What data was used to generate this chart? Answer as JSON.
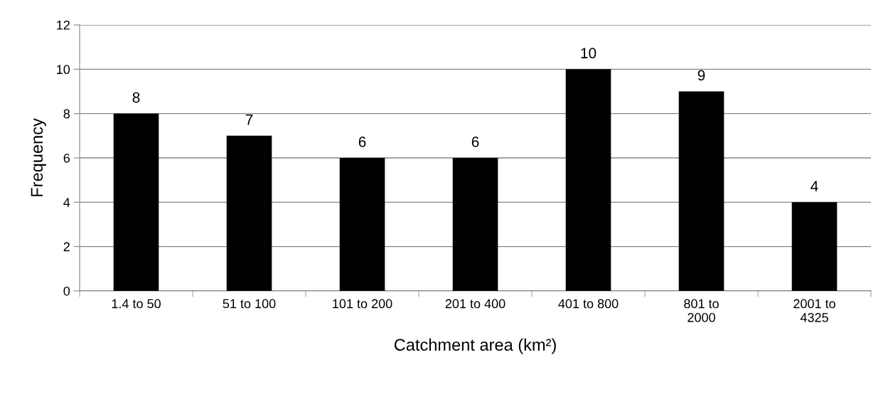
{
  "chart_data": {
    "type": "bar",
    "xlabel": "Catchment area (km²)",
    "ylabel": "Frequency",
    "categories": [
      "1.4 to 50",
      "51 to 100",
      "101 to 200",
      "201 to 400",
      "401 to 800",
      "801 to 2000",
      "2001 to 4325"
    ],
    "values": [
      8,
      7,
      6,
      6,
      10,
      9,
      4
    ],
    "color": "#000000",
    "ylim": [
      0,
      12
    ],
    "yticks": [
      0,
      2,
      4,
      6,
      8,
      10,
      12
    ],
    "grid": "y",
    "data_labels": true
  }
}
